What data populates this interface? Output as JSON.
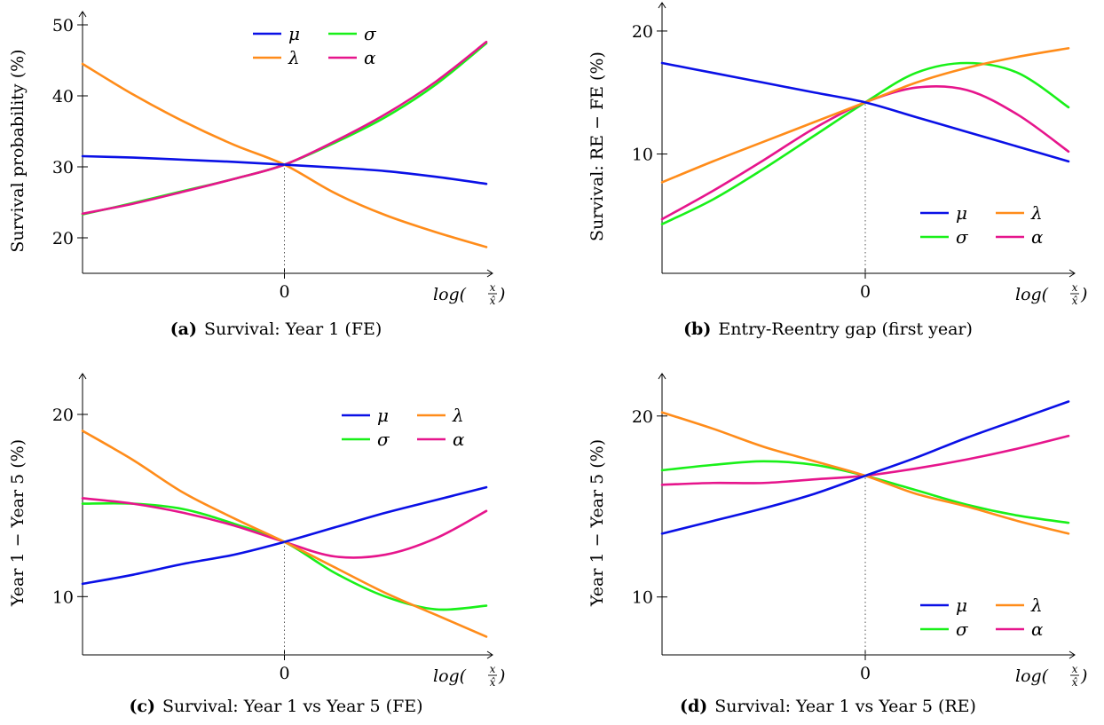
{
  "x_axis_label": "log(x/x̂)",
  "x_axis_label_parts": {
    "fn": "log(",
    "num": "x",
    "den": "x̂",
    "close": ")"
  },
  "colors": {
    "mu": "#0a10e6",
    "lambda": "#ff8c1a",
    "sigma": "#19f019",
    "alpha": "#e6158c"
  },
  "chart_data": [
    {
      "type": "line",
      "caption_tag": "(a)",
      "caption": "Survival: Year 1 (FE)",
      "ylabel": "Survival probability (%)",
      "xlim": [
        -1,
        1
      ],
      "ylim": [
        15,
        51
      ],
      "yticks": [
        20,
        30,
        40,
        50
      ],
      "xticks": [
        0
      ],
      "legend": "top-center",
      "x": [
        -1,
        -0.75,
        -0.5,
        -0.25,
        0,
        0.25,
        0.5,
        0.75,
        1
      ],
      "series": [
        {
          "name": "μ",
          "key": "mu",
          "values": [
            31.5,
            31.3,
            31.0,
            30.7,
            30.3,
            29.9,
            29.4,
            28.6,
            27.6
          ]
        },
        {
          "name": "λ",
          "key": "lambda",
          "values": [
            44.5,
            40.2,
            36.4,
            33.1,
            30.3,
            26.3,
            23.2,
            20.8,
            18.7
          ]
        },
        {
          "name": "σ",
          "key": "sigma",
          "values": [
            23.3,
            24.9,
            26.6,
            28.3,
            30.3,
            33.4,
            37.0,
            41.6,
            47.4
          ]
        },
        {
          "name": "α",
          "key": "alpha",
          "values": [
            23.4,
            24.8,
            26.5,
            28.3,
            30.3,
            33.6,
            37.4,
            42.0,
            47.6
          ]
        }
      ]
    },
    {
      "type": "line",
      "caption_tag": "(b)",
      "caption": "Entry-Reentry gap (first year)",
      "ylabel": "Survival: RE − FE (%)",
      "xlim": [
        -1,
        1
      ],
      "ylim": [
        0.3,
        21.8
      ],
      "yticks": [
        10,
        20
      ],
      "xticks": [
        0
      ],
      "legend": "bottom-right",
      "x": [
        -1,
        -0.75,
        -0.5,
        -0.25,
        0,
        0.25,
        0.5,
        0.75,
        1
      ],
      "series": [
        {
          "name": "μ",
          "key": "mu",
          "values": [
            17.4,
            16.6,
            15.8,
            15.0,
            14.2,
            13.0,
            11.8,
            10.6,
            9.4
          ]
        },
        {
          "name": "λ",
          "key": "lambda",
          "values": [
            7.7,
            9.4,
            11.0,
            12.6,
            14.2,
            15.8,
            17.0,
            17.9,
            18.6
          ]
        },
        {
          "name": "σ",
          "key": "sigma",
          "values": [
            4.3,
            6.3,
            8.8,
            11.5,
            14.2,
            16.6,
            17.4,
            16.6,
            13.8
          ]
        },
        {
          "name": "α",
          "key": "alpha",
          "values": [
            4.7,
            7.0,
            9.5,
            12.1,
            14.2,
            15.4,
            15.2,
            13.2,
            10.2
          ]
        }
      ]
    },
    {
      "type": "line",
      "caption_tag": "(c)",
      "caption": "Survival: Year 1 vs Year 5 (FE)",
      "ylabel": "Year 1 − Year 5 (%)",
      "xlim": [
        -1,
        1
      ],
      "ylim": [
        6.8,
        21.9
      ],
      "yticks": [
        10,
        20
      ],
      "xticks": [
        0
      ],
      "legend": "top-right",
      "x": [
        -1,
        -0.75,
        -0.5,
        -0.25,
        0,
        0.25,
        0.5,
        0.75,
        1
      ],
      "series": [
        {
          "name": "μ",
          "key": "mu",
          "values": [
            10.7,
            11.2,
            11.8,
            12.3,
            13.0,
            13.8,
            14.6,
            15.3,
            16.0
          ]
        },
        {
          "name": "λ",
          "key": "lambda",
          "values": [
            19.1,
            17.5,
            15.7,
            14.3,
            13.0,
            11.6,
            10.2,
            9.0,
            7.8
          ]
        },
        {
          "name": "σ",
          "key": "sigma",
          "values": [
            15.1,
            15.1,
            14.8,
            14.0,
            13.0,
            11.3,
            10.0,
            9.3,
            9.5
          ]
        },
        {
          "name": "α",
          "key": "alpha",
          "values": [
            15.4,
            15.1,
            14.6,
            13.9,
            13.0,
            12.2,
            12.3,
            13.2,
            14.7
          ]
        }
      ]
    },
    {
      "type": "line",
      "caption_tag": "(d)",
      "caption": "Survival: Year 1 vs Year 5 (RE)",
      "ylabel": "Year 1 − Year 5 (%)",
      "xlim": [
        -1,
        1
      ],
      "ylim": [
        6.8,
        22.0
      ],
      "yticks": [
        10,
        20
      ],
      "xticks": [
        0
      ],
      "legend": "bottom-right",
      "x": [
        -1,
        -0.75,
        -0.5,
        -0.25,
        0,
        0.25,
        0.5,
        0.75,
        1
      ],
      "series": [
        {
          "name": "μ",
          "key": "mu",
          "values": [
            13.5,
            14.2,
            14.9,
            15.7,
            16.7,
            17.7,
            18.8,
            19.8,
            20.8
          ]
        },
        {
          "name": "λ",
          "key": "lambda",
          "values": [
            20.2,
            19.3,
            18.3,
            17.5,
            16.7,
            15.7,
            15.0,
            14.2,
            13.5
          ]
        },
        {
          "name": "σ",
          "key": "sigma",
          "values": [
            17.0,
            17.3,
            17.5,
            17.3,
            16.7,
            15.9,
            15.1,
            14.5,
            14.1
          ]
        },
        {
          "name": "α",
          "key": "alpha",
          "values": [
            16.2,
            16.3,
            16.3,
            16.5,
            16.7,
            17.1,
            17.6,
            18.2,
            18.9
          ]
        }
      ]
    }
  ]
}
